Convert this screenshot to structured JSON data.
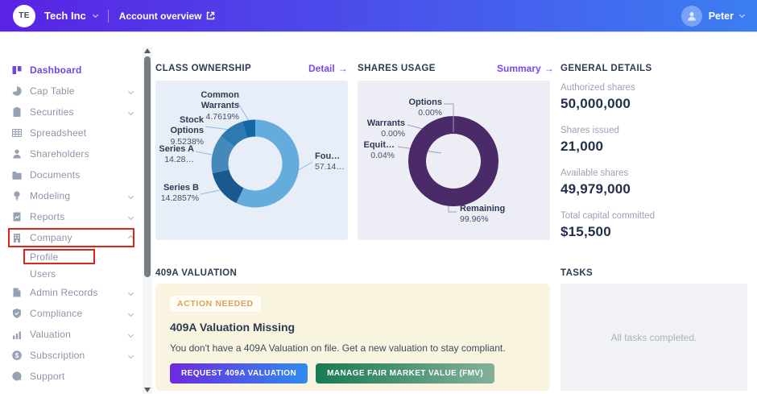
{
  "topbar": {
    "company_initials": "TE",
    "company_name": "Tech Inc",
    "account_overview_label": "Account overview",
    "user_name": "Peter"
  },
  "ui": {
    "arrow": "→"
  },
  "sidebar": {
    "items": [
      {
        "label": "Dashboard",
        "icon": "dashboard-icon",
        "active": true
      },
      {
        "label": "Cap Table",
        "icon": "pie-chart-icon",
        "chevron": "down"
      },
      {
        "label": "Securities",
        "icon": "clipboard-icon",
        "chevron": "down"
      },
      {
        "label": "Spreadsheet",
        "icon": "spreadsheet-icon"
      },
      {
        "label": "Shareholders",
        "icon": "person-icon"
      },
      {
        "label": "Documents",
        "icon": "folder-icon"
      },
      {
        "label": "Modeling",
        "icon": "lightbulb-icon",
        "chevron": "down"
      },
      {
        "label": "Reports",
        "icon": "report-icon",
        "chevron": "down"
      },
      {
        "label": "Company",
        "icon": "building-icon",
        "chevron": "up",
        "annotated": true
      },
      {
        "label": "Profile",
        "sub": true,
        "annotated": true
      },
      {
        "label": "Users",
        "sub": true
      },
      {
        "label": "Admin Records",
        "icon": "records-icon",
        "chevron": "down"
      },
      {
        "label": "Compliance",
        "icon": "shield-icon",
        "chevron": "down"
      },
      {
        "label": "Valuation",
        "icon": "growth-chart-icon",
        "chevron": "down"
      },
      {
        "label": "Subscription",
        "icon": "dollar-icon",
        "chevron": "down"
      },
      {
        "label": "Support",
        "icon": "support-icon"
      }
    ]
  },
  "class_ownership": {
    "title": "CLASS OWNERSHIP",
    "link_label": "Detail"
  },
  "shares_usage": {
    "title": "SHARES USAGE",
    "link_label": "Summary"
  },
  "general_details": {
    "title": "GENERAL DETAILS",
    "items": [
      {
        "label": "Authorized shares",
        "value": "50,000,000"
      },
      {
        "label": "Shares issued",
        "value": "21,000"
      },
      {
        "label": "Available shares",
        "value": "49,979,000"
      },
      {
        "label": "Total capital committed",
        "value": "$15,500"
      }
    ]
  },
  "valuation_409a": {
    "title": "409A VALUATION",
    "badge": "ACTION NEEDED",
    "heading": "409A Valuation Missing",
    "body": "You don't have a 409A Valuation on file. Get a new valuation to stay compliant.",
    "request_button": "REQUEST 409A VALUATION",
    "manage_button": "MANAGE FAIR MARKET VALUE (FMV)"
  },
  "tasks": {
    "title": "TASKS",
    "empty_text": "All tasks completed."
  },
  "chart_data": [
    {
      "type": "pie",
      "subtype": "donut",
      "title": "CLASS OWNERSHIP",
      "labels": [
        "Founders",
        "Series B",
        "Series A",
        "Stock Options",
        "Common Warrants"
      ],
      "values": [
        57.1429,
        14.2857,
        14.2857,
        9.5238,
        4.7619
      ],
      "colors": [
        "#64ACDC",
        "#19598F",
        "#4589BB",
        "#2D7AB2",
        "#1566A4"
      ],
      "start_angle_deg": -90,
      "direction": "clockwise",
      "legend_position": "callouts",
      "points": [
        {
          "name": "Fou…",
          "value_label": "57.14…"
        },
        {
          "name": "Series B",
          "value_label": "14.2857%"
        },
        {
          "name": "Series A",
          "value_label": "14.28…"
        },
        {
          "name": "Stock Options",
          "value_label": "9.5238%"
        },
        {
          "name": "Common Warrants",
          "value_label": "4.7619%"
        }
      ]
    },
    {
      "type": "pie",
      "subtype": "donut",
      "title": "SHARES USAGE",
      "labels": [
        "Options",
        "Warrants",
        "Equity…",
        "Remaining"
      ],
      "values": [
        0.0,
        0.0,
        0.04,
        99.96
      ],
      "colors": [
        "#4A2B67",
        "#4A2B67",
        "#4A2B67",
        "#4A2B67"
      ],
      "start_angle_deg": -90,
      "direction": "clockwise",
      "legend_position": "callouts",
      "points": [
        {
          "name": "Options",
          "value_label": "0.00%"
        },
        {
          "name": "Warrants",
          "value_label": "0.00%"
        },
        {
          "name": "Equit…",
          "value_label": "0.04%"
        },
        {
          "name": "Remaining",
          "value_label": "99.96%"
        }
      ]
    }
  ]
}
